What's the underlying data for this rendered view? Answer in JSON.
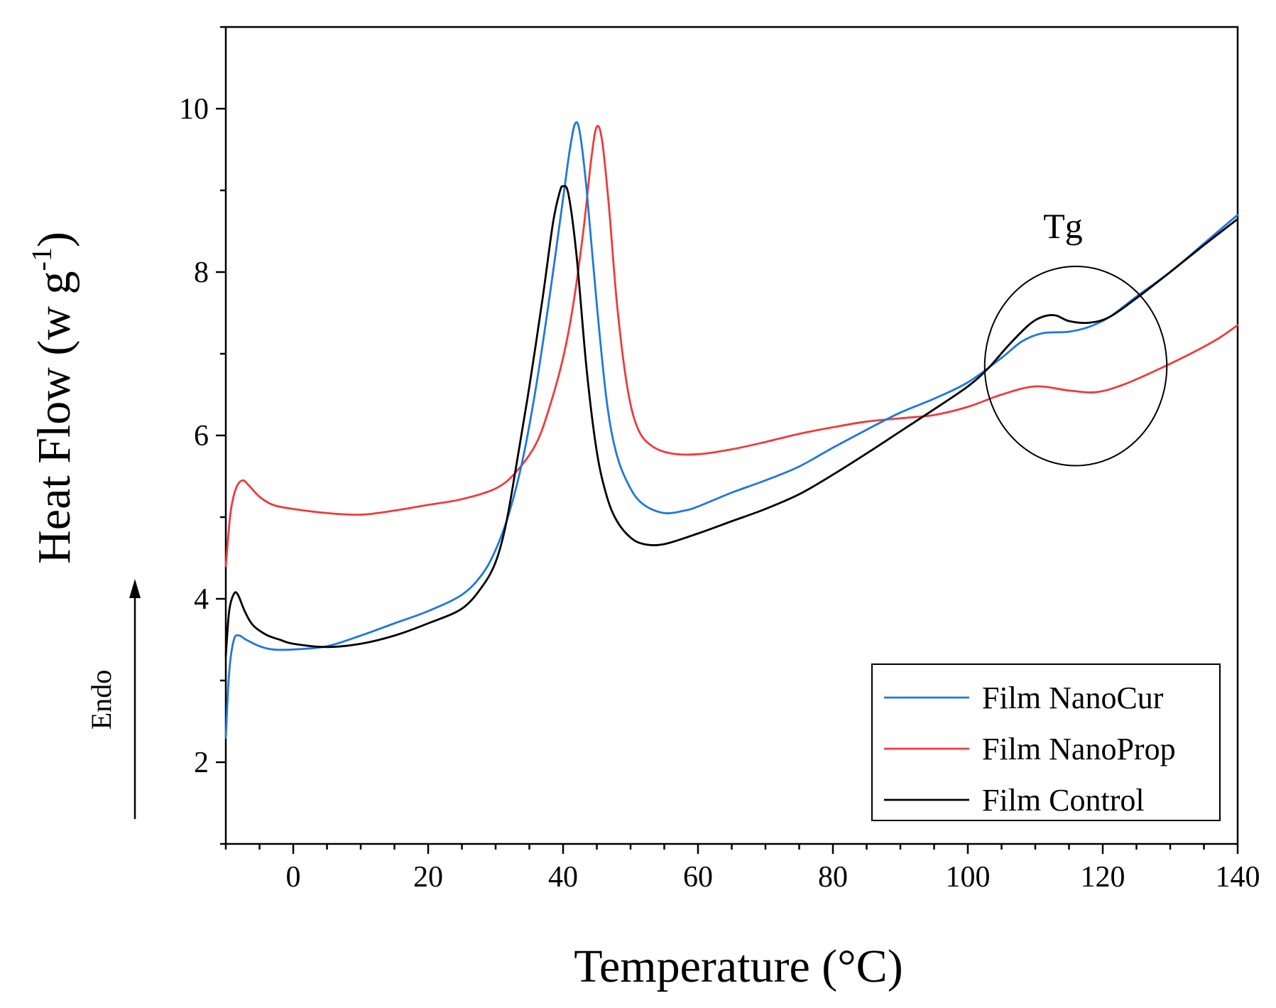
{
  "chart_data": {
    "type": "line",
    "xlabel": "Temperature (°C)",
    "ylabel_main": "Heat Flow (w g",
    "ylabel_sup": "-1",
    "ylabel_close": ")",
    "xlim": [
      -10,
      140
    ],
    "ylim": [
      1,
      11
    ],
    "x_ticks": [
      0,
      20,
      40,
      60,
      80,
      100,
      120,
      140
    ],
    "x_tick_labels": [
      "0",
      "20",
      "40",
      "60",
      "80",
      "100",
      "120",
      "140"
    ],
    "y_ticks": [
      2,
      4,
      6,
      8,
      10
    ],
    "y_tick_labels": [
      "2",
      "4",
      "6",
      "8",
      "10"
    ],
    "legend_position": "bottom-right",
    "series": [
      {
        "name": "Film NanoCur",
        "color": "#1f77e0",
        "points": [
          [
            -10,
            2.3
          ],
          [
            -9.5,
            3.1
          ],
          [
            -8.8,
            3.5
          ],
          [
            -8,
            3.55
          ],
          [
            -7,
            3.5
          ],
          [
            -5,
            3.42
          ],
          [
            -3,
            3.38
          ],
          [
            0,
            3.38
          ],
          [
            5,
            3.42
          ],
          [
            10,
            3.55
          ],
          [
            15,
            3.7
          ],
          [
            20,
            3.85
          ],
          [
            25,
            4.05
          ],
          [
            28,
            4.3
          ],
          [
            30,
            4.6
          ],
          [
            32,
            5.05
          ],
          [
            34,
            5.7
          ],
          [
            36,
            6.6
          ],
          [
            38,
            7.7
          ],
          [
            40,
            8.9
          ],
          [
            41,
            9.5
          ],
          [
            41.8,
            9.82
          ],
          [
            42.5,
            9.7
          ],
          [
            43.5,
            9.0
          ],
          [
            45,
            7.6
          ],
          [
            46.5,
            6.4
          ],
          [
            48,
            5.75
          ],
          [
            50,
            5.35
          ],
          [
            52,
            5.15
          ],
          [
            55,
            5.05
          ],
          [
            58,
            5.08
          ],
          [
            60,
            5.13
          ],
          [
            65,
            5.3
          ],
          [
            70,
            5.45
          ],
          [
            75,
            5.62
          ],
          [
            80,
            5.85
          ],
          [
            85,
            6.07
          ],
          [
            90,
            6.28
          ],
          [
            95,
            6.45
          ],
          [
            100,
            6.65
          ],
          [
            105,
            6.95
          ],
          [
            108,
            7.15
          ],
          [
            111,
            7.25
          ],
          [
            115,
            7.27
          ],
          [
            118,
            7.33
          ],
          [
            121,
            7.45
          ],
          [
            125,
            7.7
          ],
          [
            130,
            8.0
          ],
          [
            135,
            8.35
          ],
          [
            140,
            8.7
          ]
        ]
      },
      {
        "name": "Film NanoProp",
        "color": "#ee3b3b",
        "points": [
          [
            -10,
            4.4
          ],
          [
            -9.3,
            5.05
          ],
          [
            -8.5,
            5.35
          ],
          [
            -7.5,
            5.45
          ],
          [
            -6.5,
            5.38
          ],
          [
            -5,
            5.25
          ],
          [
            -3,
            5.15
          ],
          [
            0,
            5.1
          ],
          [
            5,
            5.05
          ],
          [
            10,
            5.03
          ],
          [
            15,
            5.08
          ],
          [
            20,
            5.15
          ],
          [
            25,
            5.22
          ],
          [
            30,
            5.35
          ],
          [
            33,
            5.55
          ],
          [
            36,
            5.9
          ],
          [
            38,
            6.35
          ],
          [
            40,
            6.95
          ],
          [
            41.5,
            7.6
          ],
          [
            43,
            8.5
          ],
          [
            44.2,
            9.4
          ],
          [
            45,
            9.78
          ],
          [
            45.8,
            9.6
          ],
          [
            46.8,
            8.8
          ],
          [
            48,
            7.6
          ],
          [
            49.5,
            6.6
          ],
          [
            51,
            6.1
          ],
          [
            53,
            5.88
          ],
          [
            56,
            5.78
          ],
          [
            60,
            5.77
          ],
          [
            65,
            5.83
          ],
          [
            70,
            5.92
          ],
          [
            75,
            6.02
          ],
          [
            80,
            6.1
          ],
          [
            85,
            6.17
          ],
          [
            90,
            6.21
          ],
          [
            95,
            6.25
          ],
          [
            100,
            6.35
          ],
          [
            105,
            6.5
          ],
          [
            110,
            6.6
          ],
          [
            115,
            6.55
          ],
          [
            119,
            6.53
          ],
          [
            123,
            6.62
          ],
          [
            128,
            6.8
          ],
          [
            133,
            7.0
          ],
          [
            137,
            7.18
          ],
          [
            140,
            7.35
          ]
        ]
      },
      {
        "name": "Film Control",
        "color": "#000000",
        "points": [
          [
            -10,
            3.3
          ],
          [
            -9.5,
            3.85
          ],
          [
            -8.8,
            4.06
          ],
          [
            -8.2,
            4.05
          ],
          [
            -7.2,
            3.85
          ],
          [
            -6,
            3.68
          ],
          [
            -4,
            3.56
          ],
          [
            -2,
            3.5
          ],
          [
            0,
            3.45
          ],
          [
            5,
            3.41
          ],
          [
            10,
            3.45
          ],
          [
            15,
            3.55
          ],
          [
            20,
            3.7
          ],
          [
            25,
            3.88
          ],
          [
            28,
            4.15
          ],
          [
            30,
            4.45
          ],
          [
            31.5,
            4.9
          ],
          [
            33,
            5.6
          ],
          [
            35,
            6.6
          ],
          [
            37,
            7.7
          ],
          [
            38.5,
            8.6
          ],
          [
            39.5,
            8.98
          ],
          [
            40,
            9.05
          ],
          [
            40.8,
            8.95
          ],
          [
            42,
            8.2
          ],
          [
            43.5,
            6.8
          ],
          [
            45,
            5.8
          ],
          [
            46.5,
            5.25
          ],
          [
            48,
            4.95
          ],
          [
            50,
            4.75
          ],
          [
            52,
            4.67
          ],
          [
            55,
            4.67
          ],
          [
            60,
            4.8
          ],
          [
            65,
            4.95
          ],
          [
            70,
            5.1
          ],
          [
            75,
            5.28
          ],
          [
            80,
            5.52
          ],
          [
            85,
            5.78
          ],
          [
            90,
            6.05
          ],
          [
            95,
            6.32
          ],
          [
            100,
            6.6
          ],
          [
            103,
            6.82
          ],
          [
            106,
            7.1
          ],
          [
            109,
            7.35
          ],
          [
            111,
            7.45
          ],
          [
            113,
            7.47
          ],
          [
            115,
            7.4
          ],
          [
            118,
            7.38
          ],
          [
            121,
            7.45
          ],
          [
            125,
            7.68
          ],
          [
            130,
            8.0
          ],
          [
            135,
            8.33
          ],
          [
            140,
            8.65
          ]
        ]
      }
    ],
    "annotations": [
      {
        "type": "circle",
        "label": "Tg",
        "center": [
          116,
          6.85
        ],
        "radius_x": 13.5,
        "radius_y": 1.22
      }
    ],
    "side_label": "Endo"
  }
}
